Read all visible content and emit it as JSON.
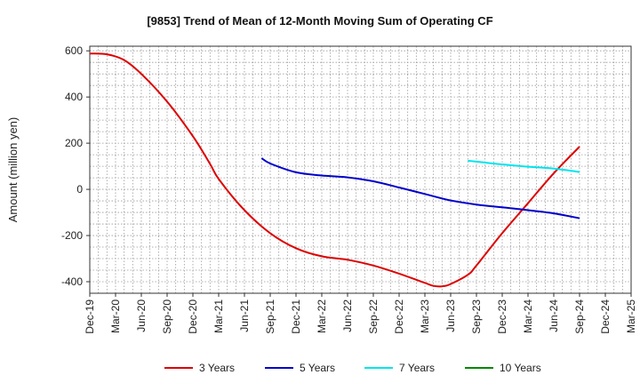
{
  "chart_data": {
    "type": "line",
    "title": "[9853]  Trend of Mean of 12-Month Moving Sum of Operating CF",
    "xlabel": "",
    "ylabel": "Amount (million yen)",
    "ylim": [
      -450,
      620
    ],
    "yticks": [
      600,
      400,
      200,
      0,
      -200,
      -400
    ],
    "ytick_labels": [
      "600",
      "400",
      "200",
      "0",
      "-200",
      "-400"
    ],
    "x_start": "Dec-19",
    "x_end": "Mar-25",
    "categories": [
      "Dec-19",
      "Mar-20",
      "Jun-20",
      "Sep-20",
      "Dec-20",
      "Mar-21",
      "Jun-21",
      "Sep-21",
      "Dec-21",
      "Mar-22",
      "Jun-22",
      "Sep-22",
      "Dec-22",
      "Mar-23",
      "Jun-23",
      "Sep-23",
      "Dec-23",
      "Mar-24",
      "Jun-24",
      "Sep-24",
      "Dec-24",
      "Mar-25"
    ],
    "grid": true,
    "legend_position": "bottom",
    "series": [
      {
        "name": "3 Years",
        "color": "#dd0000",
        "points": [
          [
            "Dec-19",
            588
          ],
          [
            "Feb-20",
            585
          ],
          [
            "Apr-20",
            560
          ],
          [
            "Jun-20",
            500
          ],
          [
            "Sep-20",
            380
          ],
          [
            "Dec-20",
            230
          ],
          [
            "Feb-21",
            110
          ],
          [
            "Mar-21",
            45
          ],
          [
            "Jun-21",
            -90
          ],
          [
            "Sep-21",
            -190
          ],
          [
            "Dec-21",
            -255
          ],
          [
            "Mar-22",
            -290
          ],
          [
            "Jun-22",
            -305
          ],
          [
            "Sep-22",
            -330
          ],
          [
            "Dec-22",
            -365
          ],
          [
            "Mar-23",
            -405
          ],
          [
            "Apr-23",
            -418
          ],
          [
            "May-23",
            -420
          ],
          [
            "Jun-23",
            -410
          ],
          [
            "Aug-23",
            -370
          ],
          [
            "Sep-23",
            -330
          ],
          [
            "Dec-23",
            -190
          ],
          [
            "Mar-24",
            -60
          ],
          [
            "Jun-24",
            70
          ],
          [
            "Sep-24",
            185
          ]
        ]
      },
      {
        "name": "5 Years",
        "color": "#0000cc",
        "points": [
          [
            "Aug-21",
            135
          ],
          [
            "Sep-21",
            112
          ],
          [
            "Dec-21",
            74
          ],
          [
            "Mar-22",
            60
          ],
          [
            "Jun-22",
            52
          ],
          [
            "Sep-22",
            35
          ],
          [
            "Dec-22",
            8
          ],
          [
            "Mar-23",
            -20
          ],
          [
            "Jun-23",
            -48
          ],
          [
            "Sep-23",
            -66
          ],
          [
            "Dec-23",
            -78
          ],
          [
            "Mar-24",
            -90
          ],
          [
            "Jun-24",
            -104
          ],
          [
            "Sep-24",
            -125
          ]
        ]
      },
      {
        "name": "7 Years",
        "color": "#00e5ee",
        "points": [
          [
            "Aug-23",
            124
          ],
          [
            "Sep-23",
            120
          ],
          [
            "Dec-23",
            108
          ],
          [
            "Mar-24",
            98
          ],
          [
            "Jun-24",
            90
          ],
          [
            "Sep-24",
            75
          ]
        ]
      },
      {
        "name": "10 Years",
        "color": "#008800",
        "points": []
      }
    ]
  }
}
